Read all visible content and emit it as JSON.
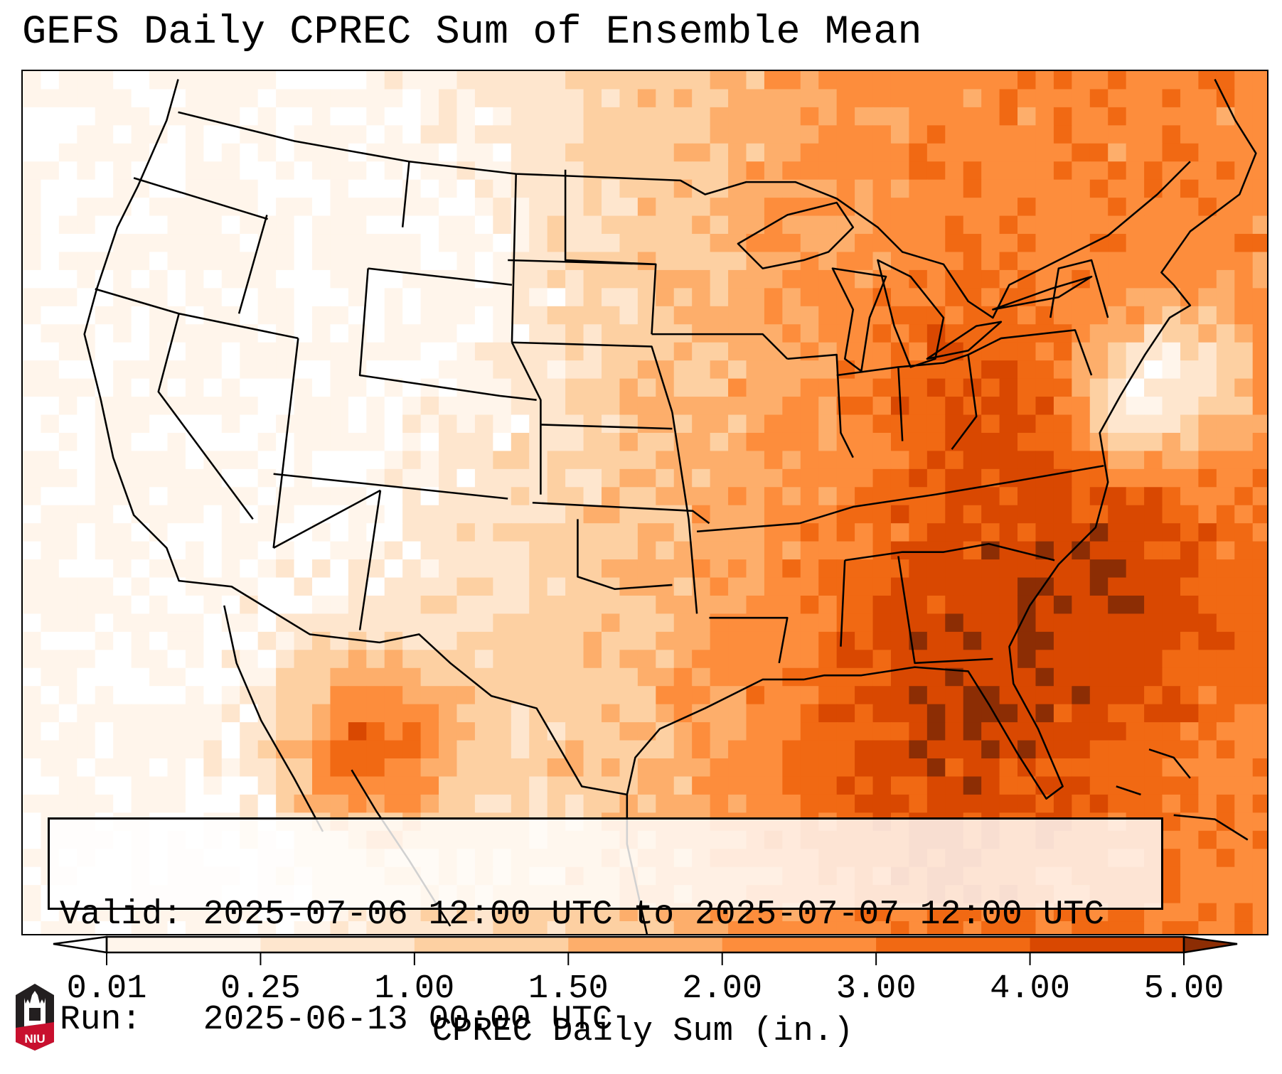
{
  "title": "GEFS Daily CPREC Sum of Ensemble Mean",
  "legend": {
    "valid_line": "Valid: 2025-07-06 12:00 UTC to 2025-07-07 12:00 UTC",
    "run_line": "Run:   2025-06-13 00:00 UTC"
  },
  "colorbar": {
    "label": "CPREC Daily Sum (in.)",
    "ticks": [
      "0.01",
      "0.25",
      "1.00",
      "1.50",
      "2.00",
      "3.00",
      "4.00",
      "5.00"
    ],
    "colors": [
      "#fff5eb",
      "#fee6ce",
      "#fdd0a2",
      "#fdae6b",
      "#fd8d3c",
      "#f16913",
      "#d94801",
      "#8c2d04"
    ],
    "under_color": "#ffffff",
    "over_color": "#8c2d04"
  },
  "logo": {
    "text": "NIU"
  }
}
